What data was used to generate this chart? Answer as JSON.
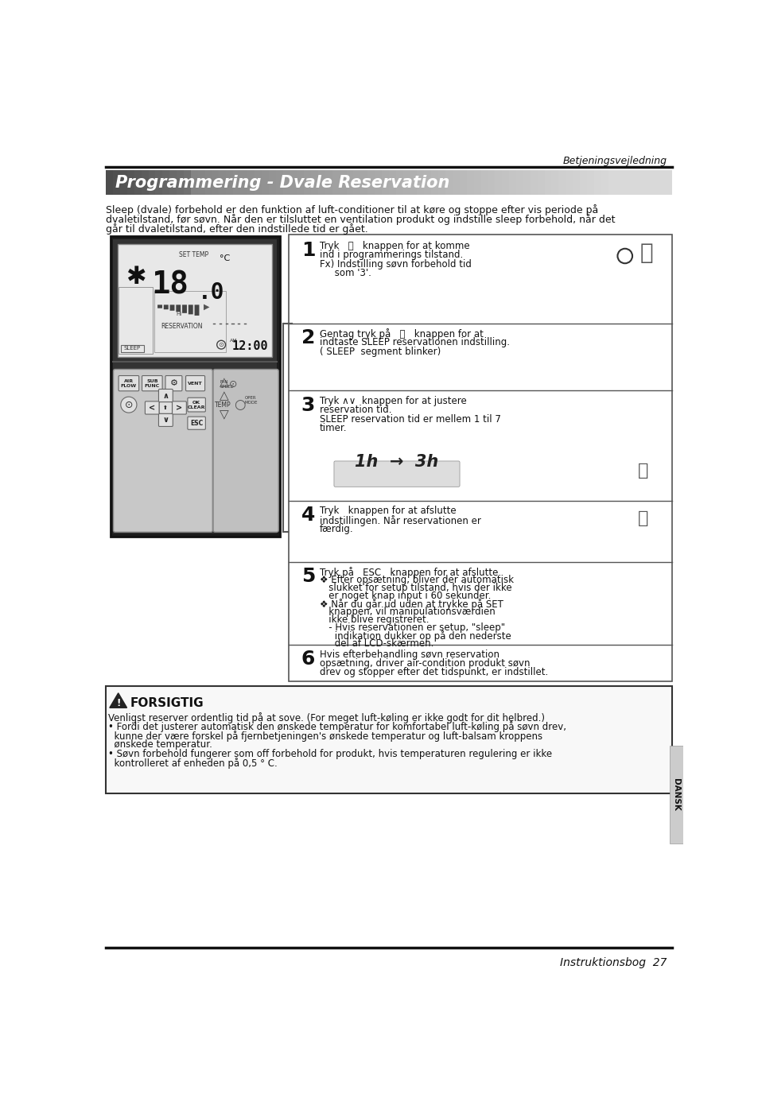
{
  "page_bg": "#ffffff",
  "top_label": "Betjeningsvejledning",
  "bottom_label": "Instruktionsbog  27",
  "title": "Programmering - Dvale Reservation",
  "intro_line1": "Sleep (dvale) forbehold er den funktion af luft-conditioner til at køre og stoppe efter vis periode på",
  "intro_line2": "dvaletilstand, før søvn. Når den er tilsluttet en ventilation produkt og indstille sleep forbehold, når det",
  "intro_line3": "går til dvaletilstand, efter den indstillede tid er gået.",
  "step1_text1": "Tryk   Ⓢ   knappen for at komme",
  "step1_text2": "ind i programmerings tilstand.",
  "step1_text3": "Fx) Indstilling søvn forbehold tid",
  "step1_text4": "     som '3'.",
  "step2_text1": "Gentag tryk på   Ⓢ   knappen for at",
  "step2_text2": "indtaste SLEEP reservationen indstilling.",
  "step2_text3": "( SLEEP  segment blinker)",
  "step3_text1": "Tryk ∧∨  knappen for at justere",
  "step3_text2": "reservation tid.",
  "step3_text3": "SLEEP reservation tid er mellem 1 til 7",
  "step3_text4": "timer.",
  "step4_text1": "Tryk   knappen for at afslutte",
  "step4_text2": "indstillingen. Når reservationen er",
  "step4_text3": "færdig.",
  "step5_text1": "Tryk på   ESC   knappen for at afslutte.",
  "step5_text2": "❖ Efter opsætning, bliver der automatisk",
  "step5_text3": "   slukket for setup tilstand, hvis der ikke",
  "step5_text4": "   er noget knap input i 60 sekunder.",
  "step5_text5": "❖ Når du går ud uden at trykke på SET",
  "step5_text6": "   knappen, vil manipulationsværdien",
  "step5_text7": "   ikke blive registreret.",
  "step5_text8": "   - Hvis reservationen er setup, \"sleep\"",
  "step5_text9": "     indikation dukker op på den nederste",
  "step5_text10": "     del af LCD-skærmen.",
  "step6_text1": "Hvis efterbehandling søvn reservation",
  "step6_text2": "opsætning, driver air-condition produkt søvn",
  "step6_text3": "drev og stopper efter det tidspunkt, er indstillet.",
  "caution_title": "FORSIGTIG",
  "caution_line1": "Venligst reserver ordentlig tid på at sove. (For meget luft-køling er ikke godt for dit helbred.)",
  "caution_line2": "• Fordi det justerer automatisk den ønskede temperatur for komfortabel luft-køling på søvn drev,",
  "caution_line3": "  kunne der være forskel på fjernbetjeningen's ønskede temperatur og luft-balsam kroppens",
  "caution_line4": "  ønskede temperatur.",
  "caution_line5": "• Søvn forbehold fungerer som off forbehold for produkt, hvis temperaturen regulering er ikke",
  "caution_line6": "  kontrolleret af enheden på 0,5 ° C.",
  "side_label": "DANSK",
  "banner_color_left": "#555555",
  "banner_color_right": "#aaaaaa"
}
